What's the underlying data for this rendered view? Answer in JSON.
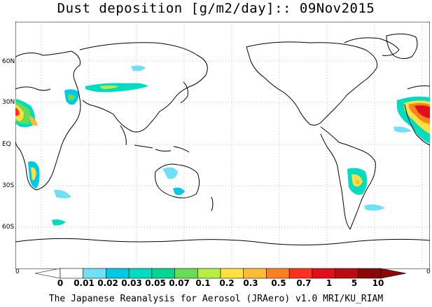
{
  "title": "Dust deposition [g/m2/day]:: 09Nov2015",
  "map": {
    "lat_labels": [
      "60N",
      "30N",
      "EQ",
      "30S",
      "60S"
    ],
    "ocean_color": "#ffffff",
    "land_outline_color": "#000000",
    "gridline_style": "dotted gray"
  },
  "colorbar": {
    "edge_left": "0",
    "edge_right": "0",
    "labels": [
      "0",
      "0.01",
      "0.02",
      "0.03",
      "0.05",
      "0.07",
      "0.1",
      "0.2",
      "0.3",
      "0.5",
      "0.7",
      "1",
      "5",
      "10"
    ],
    "colors": [
      "#ffffff",
      "#6fe0f5",
      "#00c8e6",
      "#00dcc0",
      "#00d890",
      "#66dd55",
      "#b6ee44",
      "#ffe040",
      "#ffba36",
      "#ff8020",
      "#ff3020",
      "#e0101a",
      "#bb0a10",
      "#8a0808"
    ]
  },
  "footer": "The Japanese Reanalysis for Aerosol (JRAero) v1.0 MRI/KU_RIAM"
}
